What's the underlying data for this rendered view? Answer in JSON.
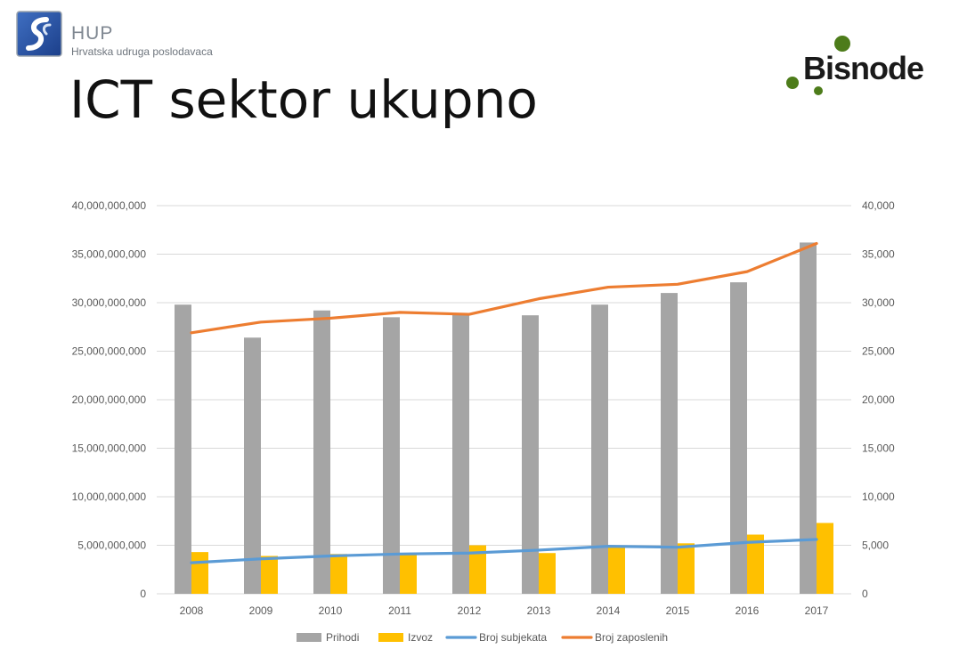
{
  "header": {
    "org_name": "HUP",
    "org_subtitle": "Hrvatska udruga poslodavaca",
    "title": "ICT sektor ukupno",
    "partner_name": "Bisnode"
  },
  "colors": {
    "prihodi": "#a5a5a5",
    "izvoz": "#ffc000",
    "broj_subjekata": "#5b9bd5",
    "broj_zaposlenih": "#ed7d31",
    "bisnode_green": "#4d7c1a"
  },
  "icons": {
    "hup_logo": "hup-logo-icon",
    "bisnode_dots": "bisnode-dots-icon"
  },
  "chart_data": {
    "type": "bar",
    "categories": [
      "2008",
      "2009",
      "2010",
      "2011",
      "2012",
      "2013",
      "2014",
      "2015",
      "2016",
      "2017"
    ],
    "series": [
      {
        "name": "Prihodi",
        "type": "bar",
        "axis": "left",
        "values": [
          29800000000,
          26400000000,
          29200000000,
          28500000000,
          28800000000,
          28700000000,
          29800000000,
          31000000000,
          32100000000,
          36200000000
        ]
      },
      {
        "name": "Izvoz",
        "type": "bar",
        "axis": "left",
        "values": [
          4300000000,
          3900000000,
          4100000000,
          4200000000,
          5000000000,
          4200000000,
          4800000000,
          5200000000,
          6100000000,
          7300000000
        ]
      },
      {
        "name": "Broj subjekata",
        "type": "line",
        "axis": "right",
        "values": [
          3200,
          3600,
          3900,
          4100,
          4200,
          4500,
          4900,
          4800,
          5300,
          5600
        ]
      },
      {
        "name": "Broj zaposlenih",
        "type": "line",
        "axis": "right",
        "values": [
          26900,
          28000,
          28400,
          29000,
          28800,
          30400,
          31600,
          31900,
          33200,
          36100
        ]
      }
    ],
    "y_left": {
      "min": 0,
      "max": 40000000000,
      "ticks": [
        "0",
        "5,000,000,000",
        "10,000,000,000",
        "15,000,000,000",
        "20,000,000,000",
        "25,000,000,000",
        "30,000,000,000",
        "35,000,000,000",
        "40,000,000,000"
      ]
    },
    "y_right": {
      "min": 0,
      "max": 40000,
      "ticks": [
        "0",
        "5,000",
        "10,000",
        "15,000",
        "20,000",
        "25,000",
        "30,000",
        "35,000",
        "40,000"
      ]
    },
    "grid": true,
    "legend_position": "bottom"
  }
}
